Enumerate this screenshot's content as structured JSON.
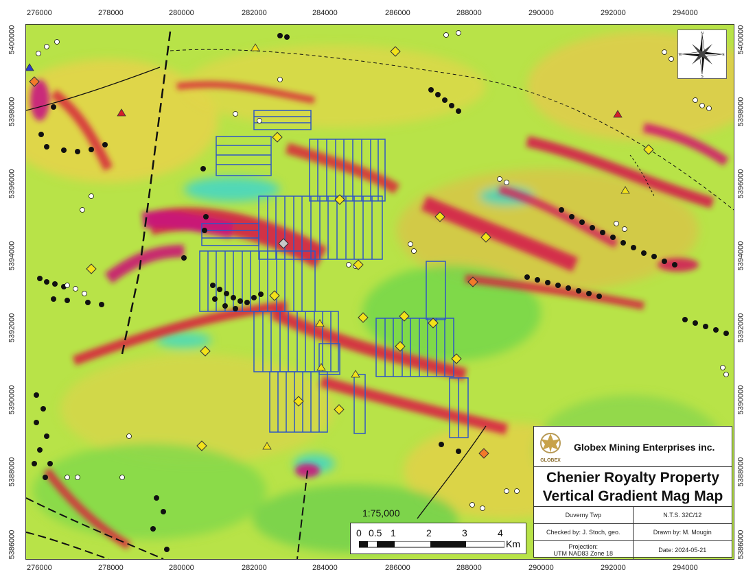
{
  "map": {
    "x_ticks": [
      "276000",
      "278000",
      "280000",
      "282000",
      "284000",
      "286000",
      "288000",
      "290000",
      "292000",
      "294000"
    ],
    "y_ticks": [
      "5400000",
      "5398000",
      "5396000",
      "5394000",
      "5392000",
      "5390000",
      "5388000",
      "5386000"
    ],
    "scale_ratio": "1:75,000",
    "scale_numbers": [
      "0",
      "0.5",
      "1",
      "2",
      "3",
      "4"
    ],
    "scale_unit": "Km",
    "north_letters": {
      "n": "N",
      "s": "S",
      "e": "E",
      "w": "W"
    }
  },
  "title_block": {
    "company": "Globex Mining Enterprises inc.",
    "logo_text": "GLOBEX",
    "title_line1": "Chenier Royalty Property",
    "title_line2": "Vertical Gradient Mag Map",
    "township": "Duverny Twp",
    "nts": "N.T.S. 32C/12",
    "checked_by": "Checked by: J. Stoch, geo.",
    "drawn_by": "Drawn by: M. Mougin",
    "projection_label": "Projection:",
    "projection": "UTM NAD83 Zone 18",
    "date": "Date: 2024-05-21"
  },
  "colors": {
    "grid_blocks": "#2f57c4",
    "magnetic_high": "#d8234a",
    "magnetic_low": "#2ecfc8",
    "background_mid": "#9be04a",
    "diamond": "#f2e21a"
  }
}
